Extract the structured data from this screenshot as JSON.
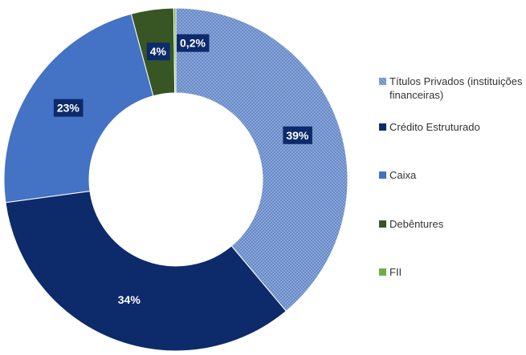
{
  "chart_data": {
    "type": "donut",
    "categories": [
      "Títulos Privados (instituições financeiras)",
      "Crédito Estruturado",
      "Caixa",
      "Debêntures",
      "FII"
    ],
    "values": [
      39,
      34,
      23,
      4,
      0.2
    ],
    "value_labels": [
      "39%",
      "34%",
      "23%",
      "4%",
      "0,2%"
    ],
    "colors": [
      "#8faadc",
      "#0d2a6b",
      "#4472c4",
      "#375623",
      "#70ad47"
    ],
    "legend": "right"
  }
}
